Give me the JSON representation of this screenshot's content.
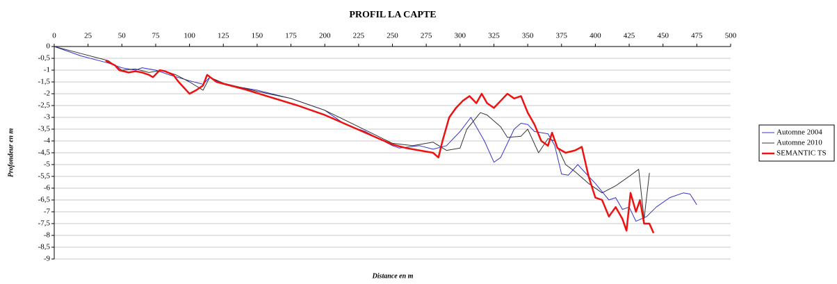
{
  "chart_data": {
    "type": "line",
    "title": "PROFIL LA CAPTE",
    "x_label": "Distance en m",
    "y_label": "Profondeur en m",
    "xlim": [
      0,
      500
    ],
    "xticks": [
      0,
      25,
      50,
      75,
      100,
      125,
      150,
      175,
      200,
      225,
      250,
      275,
      300,
      325,
      350,
      375,
      400,
      425,
      450,
      475,
      500
    ],
    "ylim": [
      -9,
      0
    ],
    "yticks": [
      0,
      {
        "value": -0.5,
        "label": "-0,5"
      },
      -1,
      {
        "value": -1.5,
        "label": "-1,5"
      },
      -2,
      {
        "value": -2.5,
        "label": "-2,5"
      },
      -3,
      {
        "value": -3.5,
        "label": "-3,5"
      },
      -4,
      {
        "value": -4.5,
        "label": "-4,5"
      },
      -5,
      {
        "value": -5.5,
        "label": "-5,5"
      },
      -6,
      {
        "value": -6.5,
        "label": "-6,5"
      },
      -7,
      {
        "value": -7.5,
        "label": "-7,5"
      },
      -8,
      {
        "value": -8.5,
        "label": "-8,5"
      },
      -9
    ],
    "grid": true,
    "legend": "right",
    "series": [
      {
        "name": "Automne 2004",
        "color": "#3333cc",
        "x": [
          0,
          20,
          40,
          50,
          60,
          65,
          75,
          85,
          100,
          110,
          115,
          125,
          150,
          175,
          200,
          215,
          230,
          250,
          255,
          270,
          280,
          290,
          300,
          308,
          318,
          325,
          330,
          340,
          345,
          350,
          355,
          365,
          370,
          375,
          380,
          387,
          395,
          400,
          410,
          415,
          420,
          425,
          430,
          438,
          445,
          455,
          465,
          470,
          475
        ],
        "values": [
          0,
          -0.4,
          -0.7,
          -0.9,
          -1.0,
          -0.9,
          -1.0,
          -1.2,
          -1.45,
          -1.6,
          -1.3,
          -1.6,
          -1.85,
          -2.2,
          -2.7,
          -3.3,
          -3.6,
          -4.2,
          -4.3,
          -4.2,
          -4.35,
          -4.2,
          -3.6,
          -3.0,
          -4.0,
          -4.9,
          -4.7,
          -3.5,
          -3.25,
          -3.3,
          -3.6,
          -3.7,
          -4.2,
          -5.4,
          -5.45,
          -5.0,
          -5.5,
          -5.8,
          -6.5,
          -6.4,
          -6.9,
          -6.8,
          -7.4,
          -7.2,
          -6.8,
          -6.4,
          -6.2,
          -6.25,
          -6.7
        ]
      },
      {
        "name": "Automne 2010",
        "color": "#333333",
        "x": [
          0,
          20,
          40,
          50,
          60,
          70,
          80,
          90,
          100,
          110,
          115,
          125,
          150,
          175,
          200,
          225,
          250,
          265,
          280,
          290,
          300,
          305,
          315,
          320,
          330,
          335,
          345,
          350,
          358,
          365,
          370,
          378,
          385,
          395,
          405,
          415,
          425,
          432,
          436,
          440
        ],
        "values": [
          0,
          -0.3,
          -0.6,
          -1.0,
          -0.95,
          -1.1,
          -1.0,
          -1.2,
          -1.5,
          -1.85,
          -1.3,
          -1.55,
          -1.9,
          -2.2,
          -2.7,
          -3.4,
          -4.1,
          -4.2,
          -4.05,
          -4.4,
          -4.3,
          -3.5,
          -2.8,
          -2.9,
          -3.4,
          -3.85,
          -3.8,
          -3.5,
          -4.5,
          -3.9,
          -4.0,
          -5.0,
          -5.3,
          -5.8,
          -6.2,
          -5.9,
          -5.5,
          -5.2,
          -7.3,
          -5.35
        ]
      },
      {
        "name": "SEMANTIC TS",
        "color": "#ee1111",
        "x": [
          38,
          45,
          48,
          55,
          60,
          65,
          70,
          73,
          78,
          82,
          88,
          92,
          96,
          100,
          105,
          110,
          113,
          120,
          140,
          160,
          180,
          200,
          220,
          240,
          250,
          260,
          270,
          280,
          284,
          287,
          292,
          297,
          302,
          307,
          312,
          316,
          320,
          325,
          330,
          335,
          340,
          345,
          350,
          355,
          360,
          365,
          368,
          372,
          378,
          385,
          390,
          395,
          400,
          405,
          410,
          415,
          420,
          423,
          426,
          430,
          433,
          436,
          440,
          443
        ],
        "values": [
          -0.6,
          -0.8,
          -1.0,
          -1.1,
          -1.05,
          -1.1,
          -1.2,
          -1.3,
          -1.0,
          -1.05,
          -1.2,
          -1.5,
          -1.75,
          -2.0,
          -1.85,
          -1.65,
          -1.2,
          -1.5,
          -1.8,
          -2.15,
          -2.5,
          -2.9,
          -3.4,
          -3.9,
          -4.15,
          -4.3,
          -4.4,
          -4.5,
          -4.7,
          -4.0,
          -3.0,
          -2.6,
          -2.3,
          -2.1,
          -2.4,
          -2.0,
          -2.4,
          -2.6,
          -2.3,
          -2.0,
          -2.2,
          -2.1,
          -2.8,
          -3.3,
          -4.0,
          -4.2,
          -3.65,
          -4.3,
          -4.5,
          -4.4,
          -4.25,
          -5.5,
          -6.4,
          -6.5,
          -7.2,
          -6.8,
          -7.3,
          -7.8,
          -6.2,
          -7.0,
          -6.5,
          -7.5,
          -7.5,
          -7.9
        ]
      }
    ]
  }
}
